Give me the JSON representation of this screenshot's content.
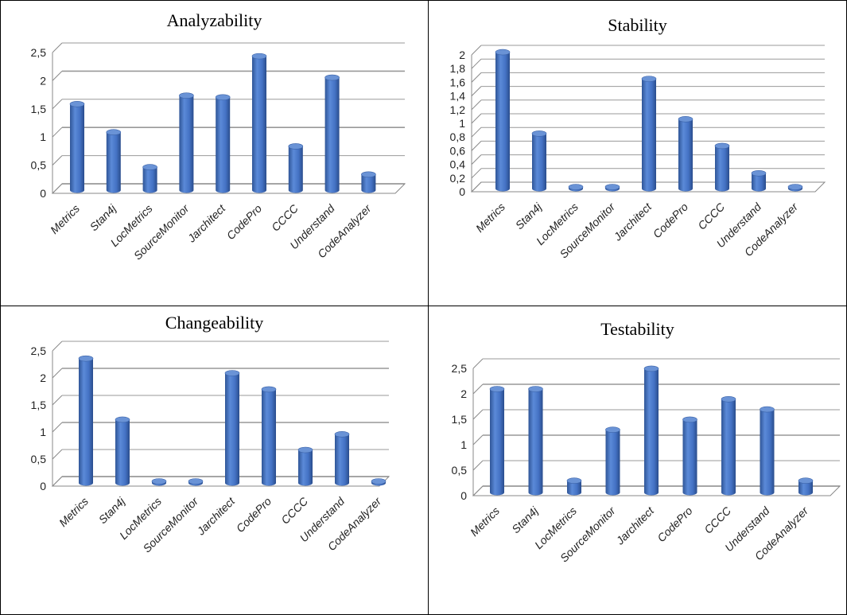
{
  "chart_data": [
    {
      "type": "bar",
      "title": "Analyzability",
      "categories": [
        "Metrics",
        "Stan4j",
        "LocMetrics",
        "SourceMonitor",
        "Jarchitect",
        "CodePro",
        "CCCC",
        "Understand",
        "CodeAnalyzer"
      ],
      "values": [
        1.5,
        1.0,
        0.38,
        1.65,
        1.62,
        2.35,
        0.75,
        1.97,
        0.25
      ],
      "yticks": [
        "0",
        "0,5",
        "1",
        "1,5",
        "2",
        "2,5"
      ],
      "ylim": [
        0,
        2.5
      ],
      "grid": true,
      "color": "#4472c4"
    },
    {
      "type": "bar",
      "title": "Stability",
      "categories": [
        "Metrics",
        "Stan4j",
        "LocMetrics",
        "SourceMonitor",
        "Jarchitect",
        "CodePro",
        "CCCC",
        "Understand",
        "CodeAnalyzer"
      ],
      "values": [
        1.97,
        0.78,
        0.0,
        0.0,
        1.58,
        0.99,
        0.6,
        0.2,
        0.0
      ],
      "yticks": [
        "0",
        "0,2",
        "0,4",
        "0,6",
        "0,8",
        "1",
        "1,2",
        "1,4",
        "1,6",
        "1,8",
        "2"
      ],
      "ylim": [
        0,
        2
      ],
      "grid": true,
      "color": "#4472c4"
    },
    {
      "type": "bar",
      "title": "Changeability",
      "categories": [
        "Metrics",
        "Stan4j",
        "LocMetrics",
        "SourceMonitor",
        "Jarchitect",
        "CodePro",
        "CCCC",
        "Understand",
        "CodeAnalyzer"
      ],
      "values": [
        2.27,
        1.14,
        0.0,
        0.0,
        2.0,
        1.7,
        0.58,
        0.87,
        0.0
      ],
      "yticks": [
        "0",
        "0,5",
        "1",
        "1,5",
        "2",
        "2,5"
      ],
      "ylim": [
        0,
        2.5
      ],
      "grid": true,
      "color": "#4472c4"
    },
    {
      "type": "bar",
      "title": "Testability",
      "categories": [
        "Metrics",
        "Stan4j",
        "LocMetrics",
        "SourceMonitor",
        "Jarchitect",
        "CodePro",
        "CCCC",
        "Understand",
        "CodeAnalyzer"
      ],
      "values": [
        2.0,
        2.0,
        0.2,
        1.2,
        2.4,
        1.4,
        1.8,
        1.6,
        0.2
      ],
      "yticks": [
        "0",
        "0,5",
        "1",
        "1,5",
        "2",
        "2,5"
      ],
      "ylim": [
        0,
        2.5
      ],
      "grid": true,
      "color": "#4472c4"
    }
  ]
}
